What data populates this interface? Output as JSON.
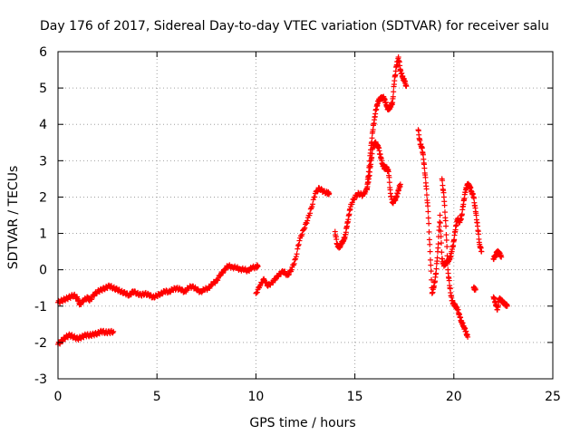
{
  "chart_data": {
    "type": "scatter",
    "title": "Day 176 of 2017, Sidereal Day-to-day VTEC variation (SDTVAR) for receiver salu",
    "xlabel": "GPS time / hours",
    "ylabel": "SDTVAR / TECUs",
    "xlim": [
      0,
      25
    ],
    "ylim": [
      -3,
      6
    ],
    "grid": true,
    "marker": "plus",
    "marker_color": "#ff0000",
    "x_ticks": [
      0,
      5,
      10,
      15,
      20,
      25
    ],
    "y_ticks": [
      -3,
      -2,
      -1,
      0,
      1,
      2,
      3,
      4,
      5,
      6
    ],
    "series": [
      {
        "segments": [
          [
            [
              0.0,
              -0.9
            ],
            [
              0.2,
              -0.85
            ],
            [
              0.4,
              -0.8
            ],
            [
              0.6,
              -0.75
            ],
            [
              0.8,
              -0.7
            ],
            [
              1.0,
              -0.8
            ],
            [
              1.1,
              -0.95
            ],
            [
              1.3,
              -0.85
            ],
            [
              1.5,
              -0.75
            ],
            [
              1.6,
              -0.85
            ],
            [
              1.8,
              -0.7
            ],
            [
              2.0,
              -0.6
            ],
            [
              2.2,
              -0.55
            ],
            [
              2.4,
              -0.5
            ],
            [
              2.6,
              -0.45
            ],
            [
              2.8,
              -0.5
            ],
            [
              3.0,
              -0.55
            ],
            [
              3.2,
              -0.6
            ],
            [
              3.4,
              -0.65
            ],
            [
              3.6,
              -0.7
            ],
            [
              3.8,
              -0.6
            ],
            [
              4.0,
              -0.65
            ],
            [
              4.2,
              -0.7
            ],
            [
              4.4,
              -0.65
            ],
            [
              4.6,
              -0.7
            ],
            [
              4.8,
              -0.75
            ],
            [
              5.0,
              -0.72
            ],
            [
              5.2,
              -0.65
            ],
            [
              5.4,
              -0.6
            ],
            [
              5.6,
              -0.6
            ],
            [
              5.8,
              -0.55
            ],
            [
              6.0,
              -0.5
            ],
            [
              6.2,
              -0.55
            ],
            [
              6.4,
              -0.6
            ],
            [
              6.6,
              -0.5
            ],
            [
              6.8,
              -0.45
            ],
            [
              7.0,
              -0.55
            ],
            [
              7.2,
              -0.6
            ],
            [
              7.4,
              -0.55
            ],
            [
              7.6,
              -0.5
            ],
            [
              7.8,
              -0.4
            ],
            [
              8.0,
              -0.3
            ],
            [
              8.2,
              -0.15
            ],
            [
              8.4,
              0.0
            ],
            [
              8.6,
              0.1
            ],
            [
              8.8,
              0.08
            ],
            [
              9.0,
              0.05
            ],
            [
              9.2,
              0.02
            ],
            [
              9.4,
              0.0
            ],
            [
              9.6,
              -0.02
            ],
            [
              9.8,
              0.05
            ],
            [
              10.0,
              0.08
            ],
            [
              10.1,
              0.1
            ]
          ],
          [
            [
              0.0,
              -2.05
            ],
            [
              0.2,
              -1.95
            ],
            [
              0.4,
              -1.85
            ],
            [
              0.6,
              -1.8
            ],
            [
              0.8,
              -1.85
            ],
            [
              1.0,
              -1.9
            ],
            [
              1.2,
              -1.85
            ],
            [
              1.4,
              -1.8
            ],
            [
              1.6,
              -1.8
            ],
            [
              1.8,
              -1.78
            ],
            [
              2.0,
              -1.75
            ],
            [
              2.2,
              -1.7
            ],
            [
              2.4,
              -1.72
            ],
            [
              2.6,
              -1.72
            ],
            [
              2.8,
              -1.7
            ]
          ],
          [
            [
              10.0,
              -0.65
            ],
            [
              10.2,
              -0.45
            ],
            [
              10.4,
              -0.25
            ],
            [
              10.6,
              -0.45
            ],
            [
              10.8,
              -0.35
            ],
            [
              11.0,
              -0.25
            ],
            [
              11.2,
              -0.1
            ],
            [
              11.4,
              -0.05
            ],
            [
              11.6,
              -0.15
            ],
            [
              11.8,
              0.0
            ],
            [
              12.0,
              0.3
            ],
            [
              12.2,
              0.8
            ],
            [
              12.4,
              1.1
            ],
            [
              12.6,
              1.35
            ],
            [
              12.8,
              1.7
            ],
            [
              13.0,
              2.1
            ],
            [
              13.2,
              2.25
            ],
            [
              13.4,
              2.15
            ],
            [
              13.6,
              2.12
            ],
            [
              13.7,
              2.1
            ]
          ],
          [
            [
              14.0,
              1.05
            ],
            [
              14.1,
              0.7
            ],
            [
              14.2,
              0.6
            ],
            [
              14.3,
              0.7
            ],
            [
              14.4,
              0.8
            ],
            [
              14.5,
              0.9
            ],
            [
              14.6,
              1.2
            ],
            [
              14.7,
              1.5
            ],
            [
              14.8,
              1.8
            ],
            [
              15.0,
              2.0
            ],
            [
              15.2,
              2.1
            ],
            [
              15.4,
              2.05
            ],
            [
              15.6,
              2.2
            ],
            [
              15.7,
              2.5
            ],
            [
              15.8,
              2.9
            ],
            [
              15.9,
              3.35
            ],
            [
              16.0,
              3.5
            ],
            [
              16.1,
              3.45
            ],
            [
              16.2,
              3.35
            ],
            [
              16.3,
              3.1
            ],
            [
              16.4,
              2.9
            ],
            [
              16.5,
              2.8
            ],
            [
              16.6,
              2.8
            ],
            [
              16.7,
              2.7
            ],
            [
              16.8,
              2.1
            ],
            [
              16.9,
              1.85
            ],
            [
              17.0,
              1.9
            ],
            [
              17.1,
              2.0
            ],
            [
              17.2,
              2.2
            ],
            [
              17.3,
              2.35
            ]
          ],
          [
            [
              15.6,
              2.2
            ],
            [
              15.7,
              2.7
            ],
            [
              15.8,
              3.3
            ],
            [
              15.9,
              3.8
            ],
            [
              16.0,
              4.2
            ],
            [
              16.1,
              4.5
            ],
            [
              16.2,
              4.65
            ],
            [
              16.3,
              4.7
            ],
            [
              16.4,
              4.75
            ],
            [
              16.5,
              4.7
            ],
            [
              16.6,
              4.5
            ],
            [
              16.7,
              4.4
            ],
            [
              16.8,
              4.5
            ],
            [
              16.9,
              4.6
            ],
            [
              17.0,
              5.2
            ],
            [
              17.1,
              5.6
            ],
            [
              17.2,
              5.85
            ],
            [
              17.3,
              5.5
            ],
            [
              17.4,
              5.3
            ],
            [
              17.5,
              5.2
            ],
            [
              17.6,
              5.05
            ]
          ],
          [
            [
              18.2,
              3.85
            ],
            [
              18.3,
              3.45
            ],
            [
              18.4,
              3.35
            ],
            [
              18.5,
              2.9
            ],
            [
              18.6,
              2.3
            ],
            [
              18.7,
              1.6
            ],
            [
              18.8,
              0.5
            ],
            [
              18.9,
              -0.65
            ],
            [
              19.0,
              -0.45
            ],
            [
              19.1,
              -0.1
            ],
            [
              19.2,
              0.6
            ],
            [
              19.3,
              1.5
            ],
            [
              19.4,
              0.3
            ],
            [
              19.5,
              0.1
            ],
            [
              19.6,
              0.2
            ],
            [
              19.7,
              0.25
            ],
            [
              19.8,
              0.3
            ],
            [
              19.9,
              0.5
            ],
            [
              20.0,
              0.8
            ],
            [
              20.1,
              1.2
            ],
            [
              20.2,
              1.4
            ],
            [
              20.3,
              1.3
            ],
            [
              20.4,
              1.5
            ],
            [
              20.5,
              1.9
            ],
            [
              20.6,
              2.2
            ],
            [
              20.7,
              2.35
            ],
            [
              20.8,
              2.3
            ],
            [
              20.9,
              2.15
            ],
            [
              21.0,
              2.0
            ],
            [
              21.1,
              1.6
            ],
            [
              21.2,
              1.2
            ],
            [
              21.3,
              0.7
            ],
            [
              21.4,
              0.5
            ]
          ],
          [
            [
              19.4,
              2.5
            ],
            [
              19.5,
              2.0
            ],
            [
              19.6,
              1.2
            ],
            [
              19.7,
              0.0
            ],
            [
              19.8,
              -0.5
            ],
            [
              19.9,
              -0.85
            ],
            [
              20.0,
              -0.95
            ],
            [
              20.1,
              -1.0
            ],
            [
              20.2,
              -1.1
            ],
            [
              20.3,
              -1.3
            ],
            [
              20.4,
              -1.45
            ],
            [
              20.5,
              -1.55
            ],
            [
              20.6,
              -1.7
            ],
            [
              20.7,
              -1.85
            ]
          ],
          [
            [
              21.0,
              -0.5
            ],
            [
              21.1,
              -0.55
            ]
          ],
          [
            [
              22.0,
              0.3
            ],
            [
              22.1,
              0.4
            ],
            [
              22.2,
              0.5
            ],
            [
              22.3,
              0.45
            ],
            [
              22.4,
              0.35
            ]
          ],
          [
            [
              22.0,
              -0.75
            ],
            [
              22.1,
              -0.9
            ],
            [
              22.2,
              -1.1
            ],
            [
              22.3,
              -0.8
            ],
            [
              22.4,
              -0.85
            ],
            [
              22.5,
              -0.9
            ],
            [
              22.6,
              -0.95
            ],
            [
              22.7,
              -1.0
            ]
          ]
        ]
      }
    ]
  }
}
